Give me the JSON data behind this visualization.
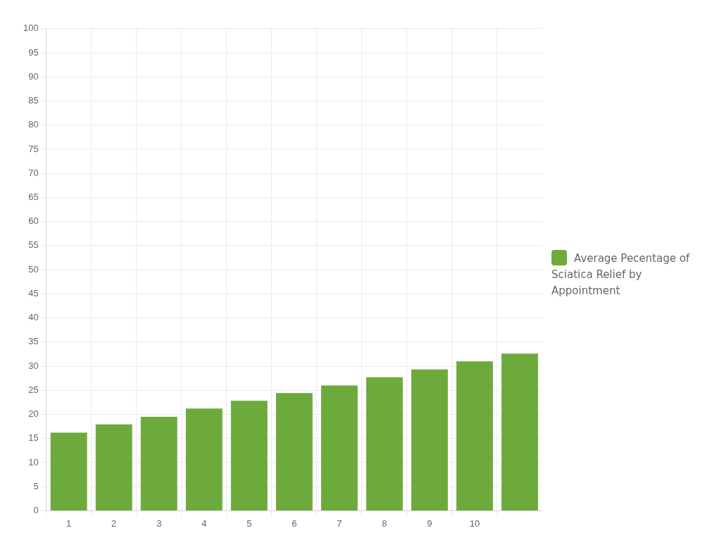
{
  "chart_data": {
    "type": "bar",
    "categories": [
      "1",
      "2",
      "3",
      "4",
      "5",
      "6",
      "7",
      "8",
      "9",
      "10",
      null
    ],
    "series": [
      {
        "name": "Average Pecentage of Sciatica Relief by Appointment",
        "color": "#6daa3c",
        "values": [
          16.2,
          17.9,
          19.5,
          21.2,
          22.8,
          24.4,
          26.0,
          27.7,
          29.3,
          31.0,
          32.6
        ]
      }
    ],
    "ylim": [
      0,
      100
    ],
    "yticks": [
      0,
      5,
      10,
      15,
      20,
      25,
      30,
      35,
      40,
      45,
      50,
      55,
      60,
      65,
      70,
      75,
      80,
      85,
      90,
      95,
      100
    ],
    "grid": true,
    "legend": "right"
  }
}
